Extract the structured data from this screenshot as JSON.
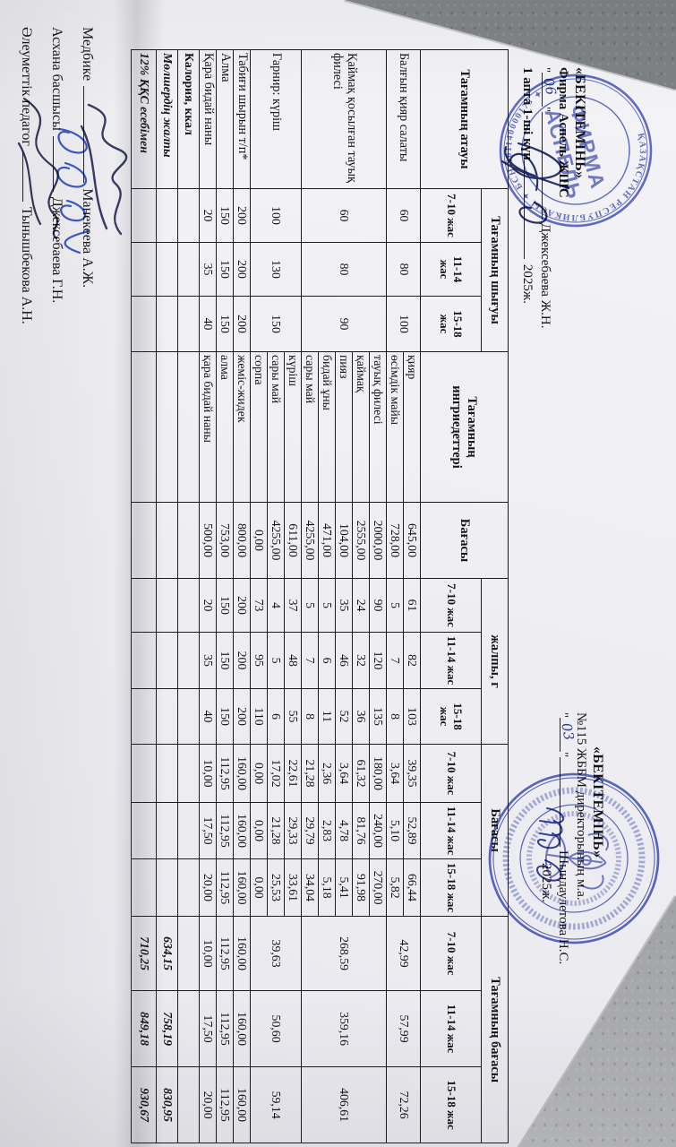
{
  "approval_left": {
    "title": "«БЕКІТЕМІНЬ»",
    "firm": "Фирма Аспель ЖШС",
    "quote": "\"",
    "handwritten_day": "06",
    "signatory": "Джексебаева Ж.Н.",
    "week_line": "1 апта 1-ші күн",
    "year": "2025ж."
  },
  "approval_right": {
    "title": "«БЕКІТЕМІНЬ»",
    "org": "№115 ЖББМ директорының м.а.",
    "quote": "\"",
    "handwritten_day": "03",
    "signatory": "Шындаулетова Н.С.",
    "year": "2025ж."
  },
  "stamps": {
    "left": {
      "ring_text": "ҚАЗАҚСТАН РЕСПУБЛИКАСЫ ✦ БСН 901140000178 ✦",
      "center_line1": "ФИРМА",
      "center_line2": "АСПЕЛЬ"
    }
  },
  "table": {
    "headers": {
      "dish": "Тағамның атауы",
      "yield_group": "Тағамның шығуы",
      "ingredients": "Тағамның ингриедеттері",
      "price": "Бағасы",
      "total_g_group": "жалпы, г",
      "price_group2": "Бағасы",
      "dish_price_group": "Тағамның бағасы",
      "ages": [
        "7-10 жас",
        "11-14 жас",
        "15-18 жас"
      ]
    },
    "dishes": [
      {
        "name": "Балғын қияр салаты",
        "yield": [
          "60",
          "80",
          "100"
        ],
        "rows": [
          {
            "ingredient": "қияр",
            "price": "645,00",
            "grams": [
              "61",
              "82",
              "103"
            ],
            "cost": [
              "39,35",
              "52,89",
              "66,44"
            ]
          },
          {
            "ingredient": "өсімдік майы",
            "price": "728,00",
            "grams": [
              "5",
              "7",
              "8"
            ],
            "cost": [
              "3,64",
              "5,10",
              "5,82"
            ]
          }
        ],
        "dish_price": [
          "42,99",
          "57,99",
          "72,26"
        ]
      },
      {
        "name": "Қаймақ қосылған тауық филесі",
        "yield": [
          "60",
          "80",
          "90"
        ],
        "rows": [
          {
            "ingredient": "тауық филесі",
            "price": "2000,00",
            "grams": [
              "90",
              "120",
              "135"
            ],
            "cost": [
              "180,00",
              "240,00",
              "270,00"
            ]
          },
          {
            "ingredient": "қаймақ",
            "price": "2555,00",
            "grams": [
              "24",
              "32",
              "36"
            ],
            "cost": [
              "61,32",
              "81,76",
              "91,98"
            ]
          },
          {
            "ingredient": "пияз",
            "price": "104,00",
            "grams": [
              "35",
              "46",
              "52"
            ],
            "cost": [
              "3,64",
              "4,78",
              "5,41"
            ]
          },
          {
            "ingredient": "бидай ұны",
            "price": "471,00",
            "grams": [
              "5",
              "6",
              "11"
            ],
            "cost": [
              "2,36",
              "2,83",
              "5,18"
            ]
          },
          {
            "ingredient": "сары май",
            "price": "4255,00",
            "grams": [
              "5",
              "7",
              "8"
            ],
            "cost": [
              "21,28",
              "29,79",
              "34,04"
            ]
          }
        ],
        "dish_price": [
          "268,59",
          "359,16",
          "406,61"
        ]
      },
      {
        "name": "Гарнир: күріш",
        "yield": [
          "100",
          "130",
          "150"
        ],
        "rows": [
          {
            "ingredient": "күріш",
            "price": "611,00",
            "grams": [
              "37",
              "48",
              "55"
            ],
            "cost": [
              "22,61",
              "29,33",
              "33,61"
            ]
          },
          {
            "ingredient": "сары май",
            "price": "4255,00",
            "grams": [
              "4",
              "5",
              "6"
            ],
            "cost": [
              "17,02",
              "21,28",
              "25,53"
            ]
          },
          {
            "ingredient": "сорпа",
            "price": "0,00",
            "grams": [
              "73",
              "95",
              "110"
            ],
            "cost": [
              "0,00",
              "0,00",
              "0,00"
            ]
          }
        ],
        "dish_price": [
          "39,63",
          "50,60",
          "59,14"
        ]
      },
      {
        "name": "Табиғи шырын т/п*",
        "yield": [
          "200",
          "200",
          "200"
        ],
        "rows": [
          {
            "ingredient": "жеміс-жидек",
            "price": "800,00",
            "grams": [
              "200",
              "200",
              "200"
            ],
            "cost": [
              "160,00",
              "160,00",
              "160,00"
            ]
          }
        ],
        "dish_price": [
          "160,00",
          "160,00",
          "160,00"
        ]
      },
      {
        "name": "Алма",
        "yield": [
          "150",
          "150",
          "150"
        ],
        "rows": [
          {
            "ingredient": "алма",
            "price": "753,00",
            "grams": [
              "150",
              "150",
              "150"
            ],
            "cost": [
              "112,95",
              "112,95",
              "112,95"
            ]
          }
        ],
        "dish_price": [
          "112,95",
          "112,95",
          "112,95"
        ]
      },
      {
        "name": "Қара бидай наны",
        "yield": [
          "20",
          "35",
          "40"
        ],
        "rows": [
          {
            "ingredient": "қара бидай наны",
            "price": "500,00",
            "grams": [
              "20",
              "35",
              "40"
            ],
            "cost": [
              "10,00",
              "17,50",
              "20,00"
            ]
          }
        ],
        "dish_price": [
          "10,00",
          "17,50",
          "20,00"
        ]
      }
    ],
    "summary": [
      {
        "label": "Калория, ккал",
        "style": "bold",
        "values": [
          "",
          "",
          ""
        ]
      },
      {
        "label": "Мөлшердің жалпы",
        "style": "bold-italic",
        "values": [
          "634,15",
          "758,19",
          "830,95"
        ]
      },
      {
        "label": "12%  ҚҚС есебімен",
        "style": "bold-italic",
        "values": [
          "710,25",
          "849,18",
          "930,67"
        ]
      }
    ]
  },
  "footer": {
    "lines": [
      {
        "role": "Медбике",
        "name": "Манекеева А.Ж."
      },
      {
        "role": "Асхана басшысы",
        "name": "Джексебаева Г.Н."
      },
      {
        "role": "Әлеуметтік педагог",
        "name": "Тынышбекова А.Н."
      }
    ]
  }
}
